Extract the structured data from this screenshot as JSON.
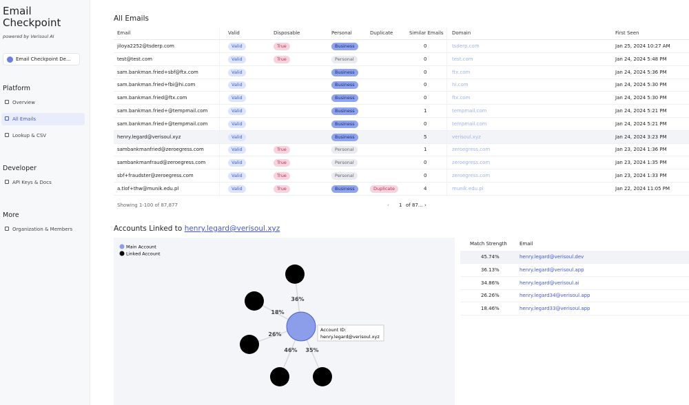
{
  "sidebar": {
    "title": "Email Checkpoint",
    "subtitle": "powered by Verisoul AI",
    "workspace": "Email Checkpoint De...",
    "sections": [
      {
        "heading": "Platform",
        "items": [
          "Overview",
          "All Emails",
          "Lookup & CSV"
        ]
      },
      {
        "heading": "Developer",
        "items": [
          "API Keys & Docs"
        ]
      },
      {
        "heading": "More",
        "items": [
          "Organization & Members"
        ]
      }
    ]
  },
  "emails": {
    "title": "All Emails",
    "columns": [
      "Email",
      "Valid",
      "Disposable",
      "Personal",
      "Duplicate",
      "Similar Emails",
      "Domain",
      "First Seen"
    ],
    "rows": [
      {
        "email": "jiloya2252@tsderp.com",
        "valid": "Valid",
        "disposable": "True",
        "personal": "Business",
        "similar": "0",
        "domain": "tsderp.com",
        "first_seen": "Jan 25, 2024 10:27 AM"
      },
      {
        "email": "test@test.com",
        "valid": "Valid",
        "disposable": "True",
        "personal": "Personal",
        "similar": "0",
        "domain": "test.com",
        "first_seen": "Jan 24, 2024 5:48 PM"
      },
      {
        "email": "sam.bankman.fried+sbf@ftx.com",
        "valid": "Valid",
        "personal": "Business",
        "similar": "0",
        "domain": "ftx.com",
        "first_seen": "Jan 24, 2024 5:36 PM"
      },
      {
        "email": "sam.bankman.fried+fbi@hi.com",
        "valid": "Valid",
        "personal": "Business",
        "similar": "0",
        "domain": "hi.com",
        "first_seen": "Jan 24, 2024 5:30 PM"
      },
      {
        "email": "sam.bankman.fried@ftx.com",
        "valid": "Valid",
        "personal": "Business",
        "similar": "0",
        "domain": "ftx.com",
        "first_seen": "Jan 24, 2024 5:30 PM"
      },
      {
        "email": "sam.bankman.fried+@tempmail.com",
        "valid": "Valid",
        "personal": "Business",
        "similar": "1",
        "domain": "tempmail.com",
        "first_seen": "Jan 24, 2024 5:21 PM"
      },
      {
        "email": "sam.bankman.fried+@tempmail.com",
        "valid": "Valid",
        "personal": "Business",
        "similar": "0",
        "domain": "tempmail.com",
        "first_seen": "Jan 24, 2024 5:21 PM"
      },
      {
        "email": "henry.legard@verisoul.xyz",
        "valid": "Valid",
        "personal": "Business",
        "similar": "5",
        "domain": "verisoul.xyz",
        "first_seen": "Jan 24, 2024 3:23 PM"
      },
      {
        "email": "sambankmanfried@zeroegress.com",
        "valid": "Valid",
        "disposable": "True",
        "personal": "Personal",
        "similar": "1",
        "domain": "zeroegress.com",
        "first_seen": "Jan 23, 2024 1:36 PM"
      },
      {
        "email": "sambankmanfraud@zeroegress.com",
        "valid": "Valid",
        "disposable": "True",
        "personal": "Personal",
        "similar": "0",
        "domain": "zeroegress.com",
        "first_seen": "Jan 23, 2024 1:35 PM"
      },
      {
        "email": "sbf+fraudster@zeroegress.com",
        "valid": "Valid",
        "disposable": "True",
        "personal": "Personal",
        "similar": "0",
        "domain": "zeroegress.com",
        "first_seen": "Jan 23, 2024 1:33 PM"
      },
      {
        "email": "a.tlof+thw@munik.edu.pl",
        "valid": "Valid",
        "disposable": "True",
        "personal": "Business",
        "duplicate": "Duplicate",
        "similar": "4",
        "domain": "munik.edu.pl",
        "first_seen": "Jan 22, 2024 11:05 PM"
      }
    ],
    "footer": "Showing 1-100 of 87,877",
    "page": "1",
    "page_total": "of 87..."
  },
  "linked": {
    "title": "Accounts Linked to",
    "email": "henry.legard@verisoul.xyz",
    "legend": [
      "Main Account",
      "Linked Account"
    ],
    "edges": [
      "36%",
      "18%",
      "26%",
      "46%",
      "35%"
    ],
    "tooltip": {
      "label": "Account ID:",
      "value": "henry.legard@verisoul.xyz"
    },
    "match_table": {
      "columns": [
        "Match Strength",
        "Email"
      ],
      "rows": [
        [
          "45.74%",
          "henry.legard@verisoul.dev"
        ],
        [
          "36.13%",
          "henry.legard@verisoul.app"
        ],
        [
          "34.86%",
          "henry.legard@verisoul.ai"
        ],
        [
          "26.26%",
          "henry.legard34@verisoul.app"
        ],
        [
          "18.46%",
          "henry.legard33@verisoul.app"
        ]
      ]
    }
  }
}
